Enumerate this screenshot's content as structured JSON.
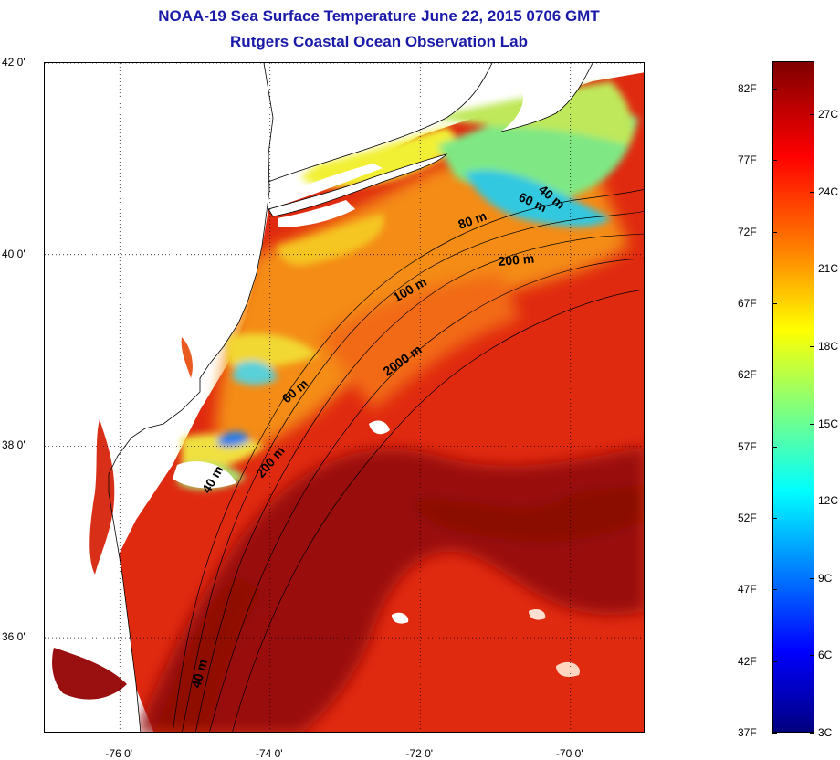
{
  "title": "NOAA-19 Sea Surface Temperature June 22, 2015 0706 GMT",
  "subtitle": "Rutgers Coastal Ocean Observation Lab",
  "map": {
    "lat_ticks": [
      {
        "label": "42 0'",
        "lat": 42
      },
      {
        "label": "40 0'",
        "lat": 40
      },
      {
        "label": "38 0'",
        "lat": 38
      },
      {
        "label": "36 0'",
        "lat": 36
      }
    ],
    "lon_ticks": [
      {
        "label": "-76 0'",
        "lon": -76
      },
      {
        "label": "-74 0'",
        "lon": -74
      },
      {
        "label": "-72 0'",
        "lon": -72
      },
      {
        "label": "-70 0'",
        "lon": -70
      }
    ],
    "lat_range": [
      35.0,
      42.0
    ],
    "lon_range": [
      -77.0,
      -69.0
    ],
    "grid": "dotted",
    "isobath_labels": [
      "40 m",
      "60 m",
      "80 m",
      "200 m",
      "100 m",
      "2000 m",
      "60 m",
      "200 m",
      "40 m",
      "40 m"
    ]
  },
  "colorbar": {
    "fahrenheit": [
      "82F",
      "77F",
      "72F",
      "67F",
      "62F",
      "57F",
      "52F",
      "47F",
      "42F",
      "37F"
    ],
    "celsius": [
      "27C",
      "24C",
      "21C",
      "18C",
      "15C",
      "12C",
      "9C",
      "6C",
      "3C"
    ],
    "colors": [
      "#00007f",
      "#0000ff",
      "#007fff",
      "#00ffff",
      "#7fff7f",
      "#ffff00",
      "#ff8000",
      "#ff0000",
      "#7f0000"
    ]
  }
}
